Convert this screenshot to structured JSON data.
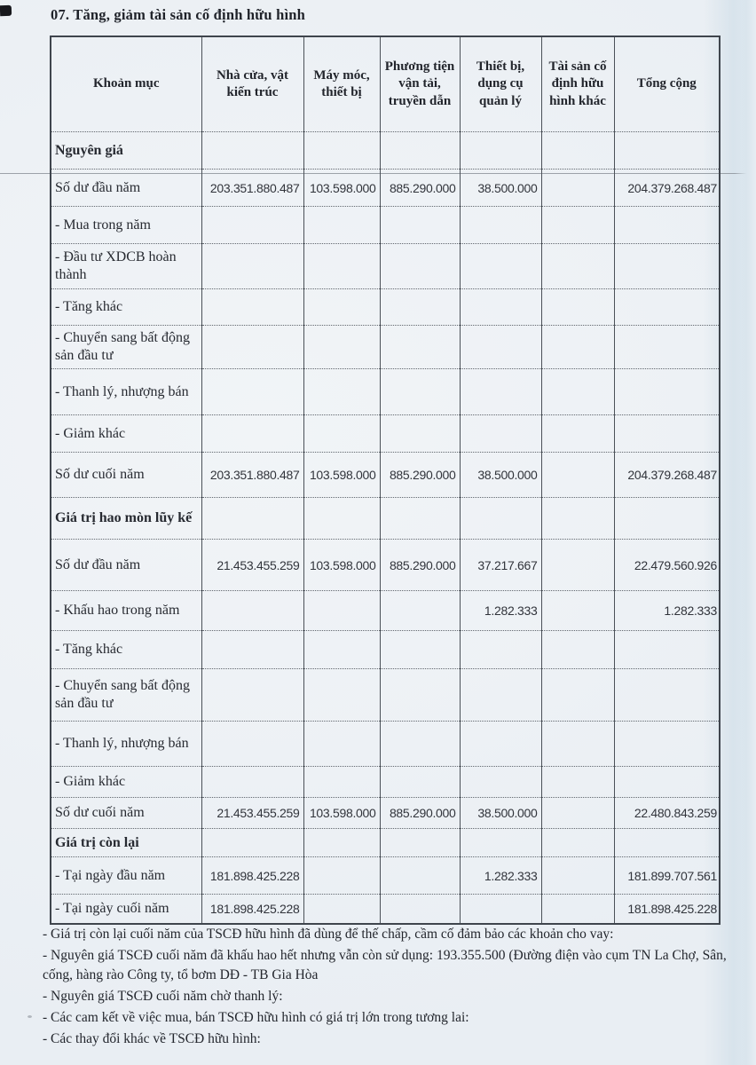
{
  "document": {
    "title": "07. Tăng, giảm tài sản cố định hữu hình"
  },
  "table": {
    "columns": [
      "Khoản mục",
      "Nhà cửa, vật kiến trúc",
      "Máy móc, thiết bị",
      "Phương tiện vận tải, truyền dẫn",
      "Thiết bị, dụng cụ quản lý",
      "Tài sản cố định hữu hình khác",
      "Tổng cộng"
    ],
    "rows": [
      {
        "label": "Nguyên giá",
        "type": "section",
        "values": [
          "",
          "",
          "",
          "",
          "",
          ""
        ]
      },
      {
        "label": "Số dư đầu năm",
        "type": "data",
        "values": [
          "203.351.880.487",
          "103.598.000",
          "885.290.000",
          "38.500.000",
          "",
          "204.379.268.487"
        ]
      },
      {
        "label": "- Mua trong năm",
        "type": "data",
        "values": [
          "",
          "",
          "",
          "",
          "",
          ""
        ]
      },
      {
        "label": "- Đầu tư XDCB hoàn thành",
        "type": "data",
        "values": [
          "",
          "",
          "",
          "",
          "",
          ""
        ]
      },
      {
        "label": "- Tăng khác",
        "type": "data",
        "values": [
          "",
          "",
          "",
          "",
          "",
          ""
        ]
      },
      {
        "label": "- Chuyển sang bất động sản đầu tư",
        "type": "data",
        "values": [
          "",
          "",
          "",
          "",
          "",
          ""
        ]
      },
      {
        "label": "- Thanh lý, nhượng bán",
        "type": "data",
        "values": [
          "",
          "",
          "",
          "",
          "",
          ""
        ]
      },
      {
        "label": "- Giảm khác",
        "type": "data",
        "values": [
          "",
          "",
          "",
          "",
          "",
          ""
        ]
      },
      {
        "label": "Số dư cuối năm",
        "type": "data",
        "values": [
          "203.351.880.487",
          "103.598.000",
          "885.290.000",
          "38.500.000",
          "",
          "204.379.268.487"
        ]
      },
      {
        "label": "Giá trị hao mòn lũy kế",
        "type": "section",
        "values": [
          "",
          "",
          "",
          "",
          "",
          ""
        ]
      },
      {
        "label": "Số dư đầu năm",
        "type": "data",
        "values": [
          "21.453.455.259",
          "103.598.000",
          "885.290.000",
          "37.217.667",
          "",
          "22.479.560.926"
        ]
      },
      {
        "label": "- Khấu hao trong năm",
        "type": "data",
        "values": [
          "",
          "",
          "",
          "1.282.333",
          "",
          "1.282.333"
        ]
      },
      {
        "label": "- Tăng khác",
        "type": "data",
        "values": [
          "",
          "",
          "",
          "",
          "",
          ""
        ]
      },
      {
        "label": "- Chuyển sang bất động sản đầu tư",
        "type": "data",
        "values": [
          "",
          "",
          "",
          "",
          "",
          ""
        ]
      },
      {
        "label": "- Thanh lý, nhượng bán",
        "type": "data",
        "values": [
          "",
          "",
          "",
          "",
          "",
          ""
        ]
      },
      {
        "label": "- Giảm khác",
        "type": "data",
        "values": [
          "",
          "",
          "",
          "",
          "",
          ""
        ]
      },
      {
        "label": "Số dư cuối năm",
        "type": "data",
        "values": [
          "21.453.455.259",
          "103.598.000",
          "885.290.000",
          "38.500.000",
          "",
          "22.480.843.259"
        ]
      },
      {
        "label": "Giá trị còn lại",
        "type": "section",
        "values": [
          "",
          "",
          "",
          "",
          "",
          ""
        ]
      },
      {
        "label": "- Tại ngày đầu năm",
        "type": "data",
        "values": [
          "181.898.425.228",
          "",
          "",
          "1.282.333",
          "",
          "181.899.707.561"
        ]
      },
      {
        "label": "- Tại ngày cuối năm",
        "type": "data",
        "values": [
          "181.898.425.228",
          "",
          "",
          "",
          "",
          "181.898.425.228"
        ]
      }
    ]
  },
  "notes": [
    "- Giá trị còn lại cuối năm của TSCĐ hữu hình đã dùng để thế chấp, cầm cố đảm bảo các khoản cho vay:",
    "- Nguyên giá TSCĐ cuối năm đã khấu hao hết nhưng vẫn còn sử dụng: 193.355.500 (Đường điện vào cụm TN La Chợ, Sân, cống, hàng rào Công ty, tổ bơm DĐ - TB Gia Hòa",
    "- Nguyên giá TSCĐ cuối năm chờ thanh lý:",
    "- Các cam kết về việc mua, bán TSCĐ hữu hình có giá trị lớn trong tương lai:",
    "- Các thay đổi khác về TSCĐ hữu hình:"
  ]
}
